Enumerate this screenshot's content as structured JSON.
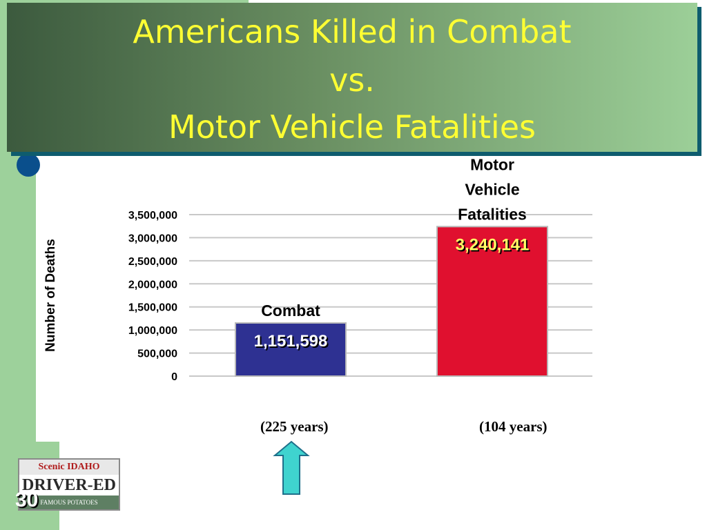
{
  "slide": {
    "title_lines": [
      "Americans Killed in Combat",
      "vs.",
      "Motor Vehicle Fatalities"
    ],
    "slide_number": "30",
    "logo": {
      "top_text": "Scenic IDAHO",
      "main_text": "DRIVER-ED",
      "bottom_text": "FAMOUS POTATOES"
    },
    "up_arrow_icon": "up-arrow-icon",
    "colors": {
      "title_text": "#ffff33",
      "combat_bar": "#2e3192",
      "motor_bar": "#e0102f",
      "arrow": "#3fd3cf"
    }
  },
  "chart_data": {
    "type": "bar",
    "title": "",
    "ylabel": "Number of Deaths",
    "xlabel": "",
    "ylim": [
      0,
      3500000
    ],
    "yticks": [
      0,
      500000,
      1000000,
      1500000,
      2000000,
      2500000,
      3000000,
      3500000
    ],
    "ytick_labels": [
      "0",
      "500,000",
      "1,000,000",
      "1,500,000",
      "2,000,000",
      "2,500,000",
      "3,000,000",
      "3,500,000"
    ],
    "grid": true,
    "categories": [
      "Combat",
      "Motor Vehicle Fatalities"
    ],
    "category_label_lines": [
      [
        "Combat"
      ],
      [
        "Motor",
        "Vehicle",
        "Fatalities"
      ]
    ],
    "values": [
      1151598,
      3240141
    ],
    "data_labels": [
      "1,151,598",
      "3,240,141"
    ],
    "durations": [
      "(225 years)",
      "(104 years)"
    ]
  }
}
